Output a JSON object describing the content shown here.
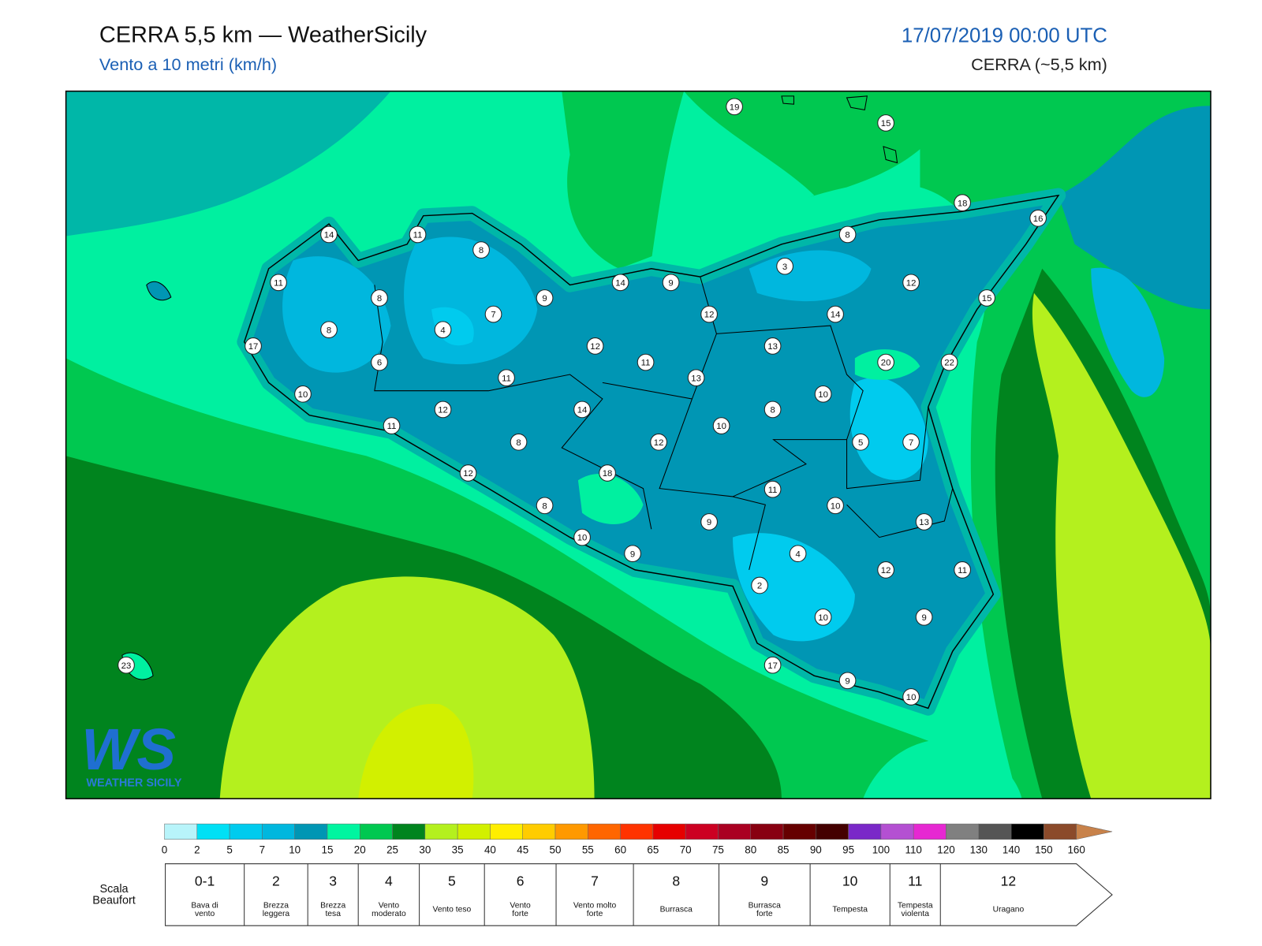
{
  "header": {
    "title": "CERRA 5,5 km — WeatherSicily",
    "subtitle": "Vento a 10 metri (km/h)",
    "datetime": "17/07/2019 00:00 UTC",
    "model": "CERRA (~5,5 km)"
  },
  "map": {
    "stations": [
      19,
      15,
      18,
      16,
      14,
      11,
      8,
      8,
      3,
      12,
      11,
      14,
      9,
      8,
      9,
      7,
      12,
      14,
      15,
      8,
      4,
      17,
      12,
      13,
      20,
      22,
      6,
      11,
      11,
      13,
      10,
      10,
      12,
      14,
      8,
      11,
      10,
      5,
      7,
      8,
      12,
      18,
      12,
      11,
      10,
      8,
      9,
      13,
      10,
      4,
      9,
      12,
      11,
      2,
      10,
      9,
      23,
      17,
      9,
      10
    ]
  },
  "logo": {
    "mark": "WS",
    "name": "WEATHER SICILY"
  },
  "colorbar": {
    "ticks": [
      0,
      2,
      5,
      7,
      10,
      15,
      20,
      25,
      30,
      35,
      40,
      45,
      50,
      55,
      60,
      65,
      70,
      75,
      80,
      85,
      90,
      95,
      100,
      110,
      120,
      130,
      140,
      150,
      160
    ],
    "colors": [
      "#b8f4fa",
      "#00e0f5",
      "#00cbee",
      "#00b7de",
      "#0096b4",
      "#00f5a0",
      "#00c850",
      "#00841e",
      "#b4f01e",
      "#d2f000",
      "#ffee00",
      "#ffcc00",
      "#ff9900",
      "#ff6600",
      "#ff3300",
      "#e60000",
      "#cc0022",
      "#aa0022",
      "#880011",
      "#660000",
      "#440000",
      "#7a28c8",
      "#b450d2",
      "#e628d2",
      "#808080",
      "#555555",
      "#000000",
      "#8b4a2a",
      "#c8824a"
    ]
  },
  "beaufort": {
    "title": [
      "Scala",
      "Beaufort"
    ],
    "levels": [
      {
        "force": "0-1",
        "label": [
          "Bava di",
          "vento"
        ]
      },
      {
        "force": "2",
        "label": [
          "Brezza",
          "leggera"
        ]
      },
      {
        "force": "3",
        "label": [
          "Brezza",
          "tesa"
        ]
      },
      {
        "force": "4",
        "label": [
          "Vento",
          "moderato"
        ]
      },
      {
        "force": "5",
        "label": [
          "Vento teso"
        ]
      },
      {
        "force": "6",
        "label": [
          "Vento",
          "forte"
        ]
      },
      {
        "force": "7",
        "label": [
          "Vento molto",
          "forte"
        ]
      },
      {
        "force": "8",
        "label": [
          "Burrasca"
        ]
      },
      {
        "force": "9",
        "label": [
          "Burrasca",
          "forte"
        ]
      },
      {
        "force": "10",
        "label": [
          "Tempesta"
        ]
      },
      {
        "force": "11",
        "label": [
          "Tempesta",
          "violenta"
        ]
      },
      {
        "force": "12",
        "label": [
          "Uragano"
        ]
      }
    ]
  }
}
